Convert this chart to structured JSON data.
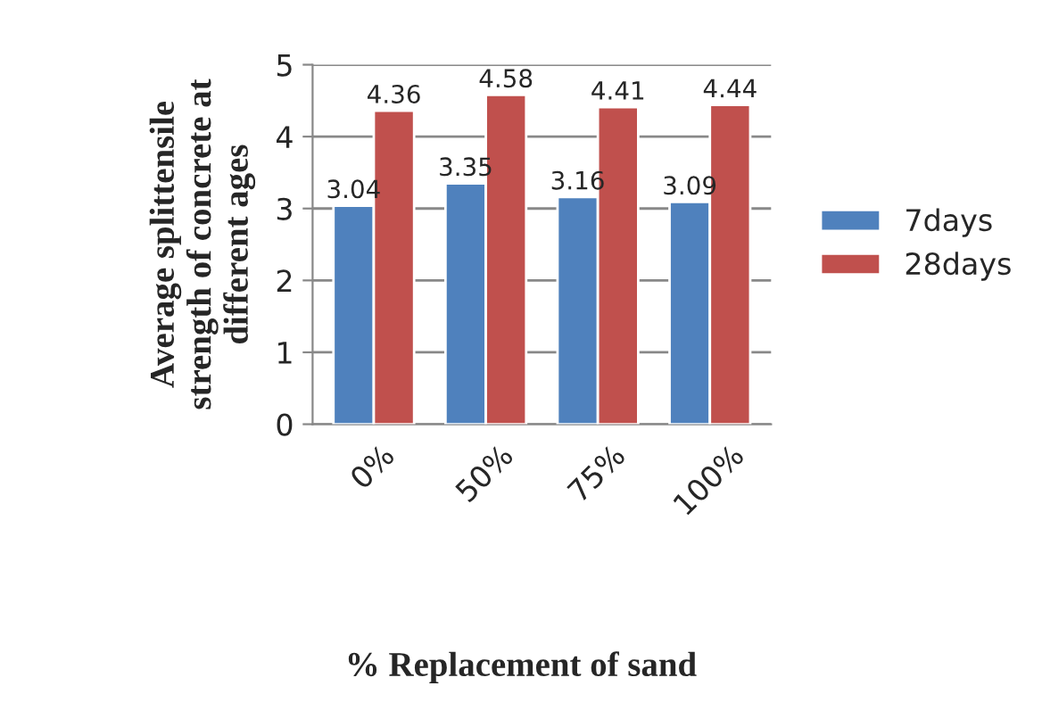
{
  "chart_data": {
    "type": "bar",
    "xlabel": "% Replacement of sand",
    "ylabel": "Average splittensile\nstrength of concrete at\ndifferent ages",
    "categories": [
      "0%",
      "50%",
      "75%",
      "100%"
    ],
    "series": [
      {
        "name": "7days",
        "color": "#4f81bd",
        "values": [
          3.04,
          3.35,
          3.16,
          3.09
        ]
      },
      {
        "name": "28days",
        "color": "#c0504d",
        "values": [
          4.36,
          4.58,
          4.41,
          4.44
        ]
      }
    ],
    "ylim": [
      0,
      5
    ],
    "yticks": [
      0,
      1,
      2,
      3,
      4,
      5
    ],
    "grid": "y",
    "legend": "right",
    "data_labels": true
  }
}
